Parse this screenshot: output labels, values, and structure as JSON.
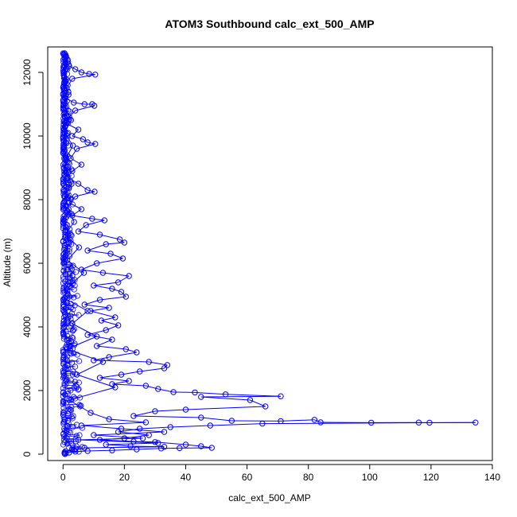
{
  "chart_data": {
    "type": "scatter",
    "style": "points-and-lines",
    "title": "ATOM3 Southbound calc_ext_500_AMP",
    "xlabel": "calc_ext_500_AMP",
    "ylabel": "Altitude (m)",
    "xlim": [
      -5,
      140
    ],
    "ylim": [
      -200,
      12800
    ],
    "x_ticks": [
      0,
      20,
      40,
      60,
      80,
      100,
      120,
      140
    ],
    "y_ticks": [
      0,
      2000,
      4000,
      6000,
      8000,
      10000,
      12000
    ],
    "grid": false,
    "legend": "none",
    "color": "#0000ff",
    "series": [
      {
        "points": [
          [
            0.5,
            12600
          ],
          [
            1.0,
            12500
          ],
          [
            1.5,
            12400
          ],
          [
            0.8,
            12300
          ],
          [
            2.0,
            12200
          ],
          [
            4.0,
            12100
          ],
          [
            6.0,
            12000
          ],
          [
            8.5,
            11950
          ],
          [
            10.5,
            11930
          ],
          [
            3.0,
            11800
          ],
          [
            1.2,
            11500
          ],
          [
            0.7,
            11200
          ],
          [
            3.5,
            11050
          ],
          [
            7.0,
            11000
          ],
          [
            9.5,
            11000
          ],
          [
            10.2,
            10950
          ],
          [
            4.0,
            10800
          ],
          [
            2.0,
            10600
          ],
          [
            1.0,
            10400
          ],
          [
            5.0,
            10200
          ],
          [
            3.0,
            10000
          ],
          [
            6.5,
            9900
          ],
          [
            8.0,
            9800
          ],
          [
            10.5,
            9750
          ],
          [
            4.5,
            9600
          ],
          [
            2.5,
            9300
          ],
          [
            6.0,
            9100
          ],
          [
            3.0,
            8900
          ],
          [
            1.5,
            8700
          ],
          [
            5.0,
            8500
          ],
          [
            8.0,
            8300
          ],
          [
            10.3,
            8250
          ],
          [
            4.0,
            8100
          ],
          [
            2.0,
            7900
          ],
          [
            6.0,
            7700
          ],
          [
            3.0,
            7500
          ],
          [
            9.5,
            7400
          ],
          [
            13.5,
            7350
          ],
          [
            7.5,
            7200
          ],
          [
            5.0,
            7000
          ],
          [
            12.0,
            6900
          ],
          [
            18.5,
            6750
          ],
          [
            20.0,
            6650
          ],
          [
            14.0,
            6600
          ],
          [
            8.0,
            6400
          ],
          [
            15.5,
            6300
          ],
          [
            19.5,
            6150
          ],
          [
            11.0,
            6000
          ],
          [
            6.0,
            5800
          ],
          [
            13.0,
            5700
          ],
          [
            21.5,
            5600
          ],
          [
            18.0,
            5400
          ],
          [
            10.0,
            5300
          ],
          [
            16.0,
            5200
          ],
          [
            19.0,
            5100
          ],
          [
            20.5,
            4950
          ],
          [
            12.0,
            4850
          ],
          [
            7.0,
            4700
          ],
          [
            15.0,
            4600
          ],
          [
            9.0,
            4500
          ],
          [
            17.0,
            4300
          ],
          [
            12.5,
            4200
          ],
          [
            18.0,
            4050
          ],
          [
            14.0,
            3900
          ],
          [
            8.0,
            3750
          ],
          [
            16.0,
            3600
          ],
          [
            11.0,
            3400
          ],
          [
            20.5,
            3300
          ],
          [
            24.0,
            3200
          ],
          [
            15.0,
            3050
          ],
          [
            10.0,
            2950
          ],
          [
            28.0,
            2900
          ],
          [
            34.0,
            2800
          ],
          [
            33.0,
            2700
          ],
          [
            25.0,
            2600
          ],
          [
            19.0,
            2500
          ],
          [
            12.0,
            2400
          ],
          [
            21.5,
            2300
          ],
          [
            16.0,
            2200
          ],
          [
            27.0,
            2150
          ],
          [
            31.0,
            2050
          ],
          [
            36.0,
            1950
          ],
          [
            43.0,
            1940
          ],
          [
            53.0,
            1880
          ],
          [
            71.0,
            1820
          ],
          [
            45.0,
            1800
          ],
          [
            61.0,
            1700
          ],
          [
            66.0,
            1500
          ],
          [
            40.0,
            1400
          ],
          [
            30.0,
            1350
          ],
          [
            23.0,
            1200
          ],
          [
            45.0,
            1150
          ],
          [
            55.0,
            1050
          ],
          [
            71.0,
            1040
          ],
          [
            82.0,
            1080
          ],
          [
            84.0,
            1000
          ],
          [
            100.5,
            990
          ],
          [
            116.0,
            995
          ],
          [
            119.5,
            990
          ],
          [
            134.5,
            995
          ],
          [
            65.0,
            960
          ],
          [
            48.0,
            900
          ],
          [
            35.0,
            850
          ],
          [
            25.0,
            800
          ],
          [
            18.0,
            700
          ],
          [
            28.0,
            600
          ],
          [
            20.0,
            500
          ],
          [
            12.0,
            450
          ],
          [
            23.0,
            400
          ],
          [
            30.0,
            380
          ],
          [
            40.0,
            300
          ],
          [
            45.0,
            250
          ],
          [
            48.5,
            200
          ],
          [
            38.0,
            190
          ],
          [
            32.0,
            180
          ],
          [
            24.0,
            150
          ],
          [
            16.0,
            120
          ],
          [
            8.0,
            100
          ],
          [
            4.0,
            80
          ],
          [
            2.0,
            50
          ],
          [
            0.5,
            20
          ]
        ]
      },
      {
        "points": [
          [
            0.3,
            12550
          ],
          [
            0.8,
            12100
          ],
          [
            0.4,
            11700
          ],
          [
            1.8,
            11300
          ],
          [
            0.6,
            10900
          ],
          [
            2.6,
            10500
          ],
          [
            0.5,
            10100
          ],
          [
            3.2,
            9700
          ],
          [
            1.0,
            9300
          ],
          [
            0.4,
            8900
          ],
          [
            2.8,
            8500
          ],
          [
            0.6,
            8100
          ],
          [
            1.8,
            7700
          ],
          [
            3.6,
            7300
          ],
          [
            0.7,
            6900
          ],
          [
            5.2,
            6500
          ],
          [
            1.4,
            6100
          ],
          [
            6.8,
            5700
          ],
          [
            2.2,
            5300
          ],
          [
            0.5,
            4900
          ],
          [
            8.0,
            4500
          ],
          [
            3.0,
            4100
          ],
          [
            11.0,
            3700
          ],
          [
            1.2,
            3300
          ],
          [
            13.0,
            2900
          ],
          [
            4.5,
            2500
          ],
          [
            17.0,
            2100
          ],
          [
            2.0,
            1700
          ],
          [
            9.0,
            1300
          ],
          [
            15.0,
            1100
          ],
          [
            27.0,
            1000
          ],
          [
            6.0,
            900
          ],
          [
            19.0,
            800
          ],
          [
            33.0,
            700
          ],
          [
            10.0,
            600
          ],
          [
            26.0,
            500
          ],
          [
            5.0,
            450
          ],
          [
            31.0,
            350
          ],
          [
            14.0,
            300
          ],
          [
            22.0,
            250
          ],
          [
            33.0,
            230
          ],
          [
            7.0,
            200
          ],
          [
            3.0,
            150
          ],
          [
            0.5,
            60
          ]
        ]
      }
    ]
  }
}
